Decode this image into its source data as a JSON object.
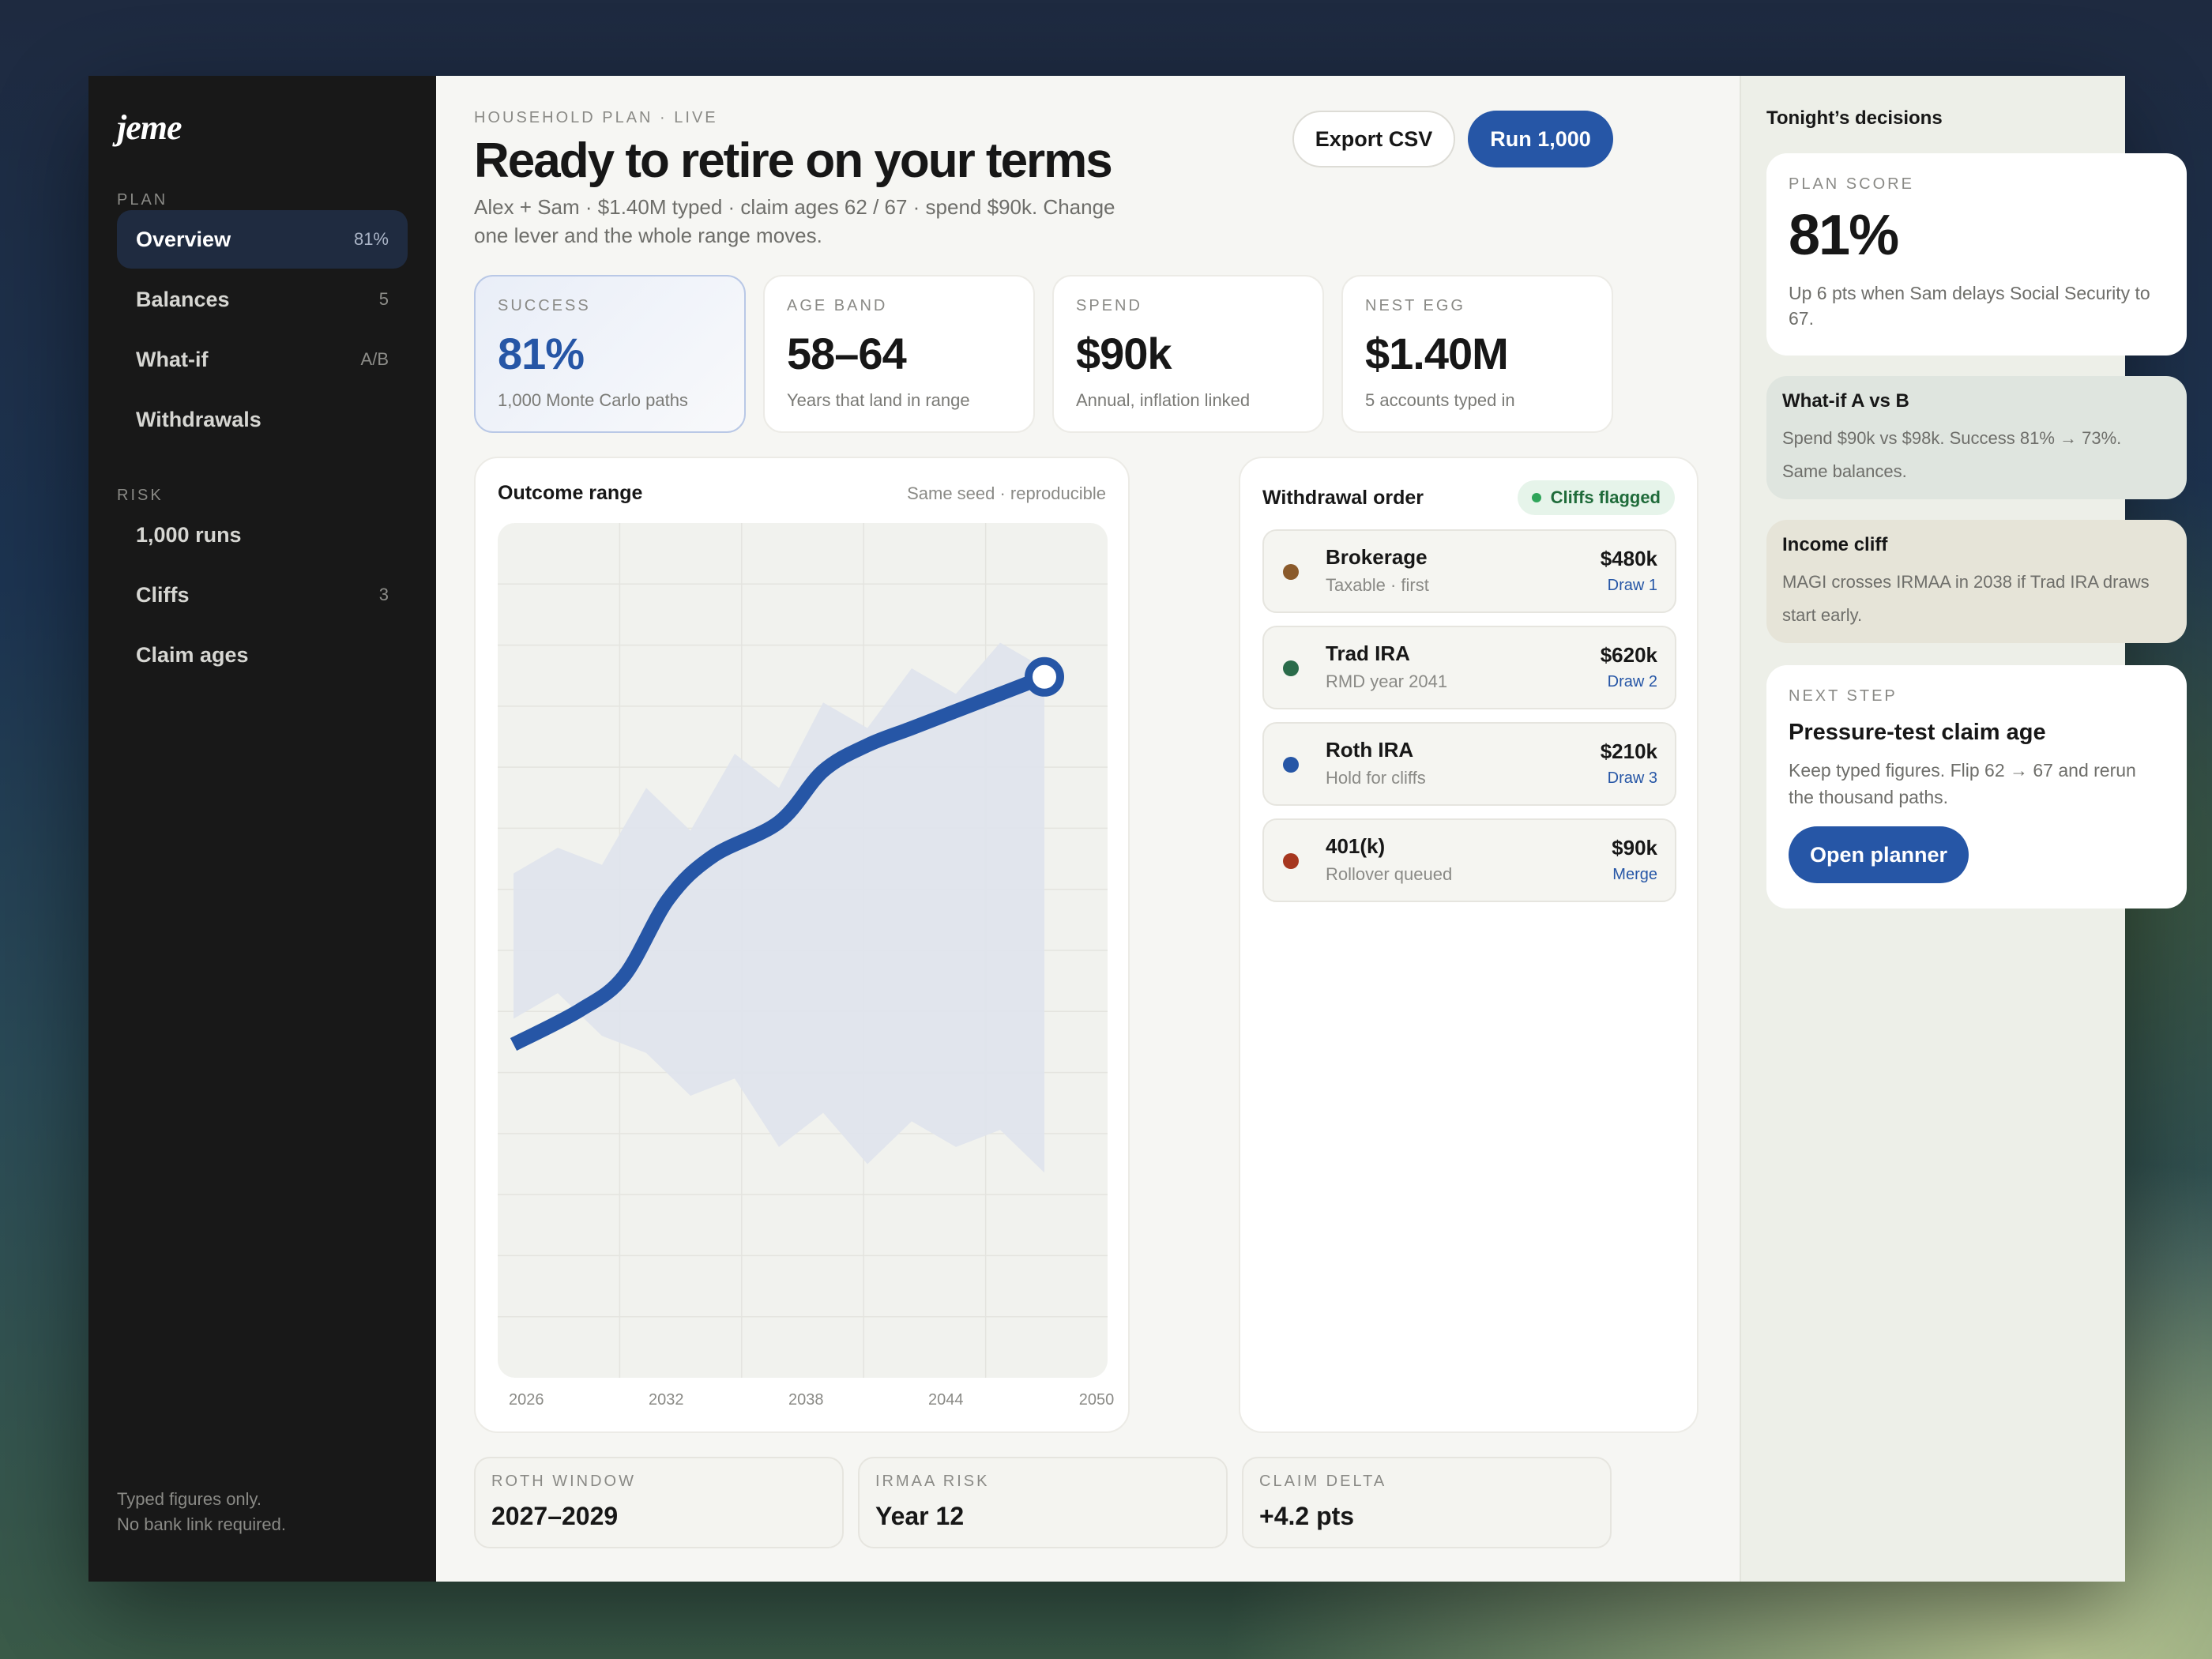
{
  "app": {
    "logo": "jeme"
  },
  "sidebar": {
    "plan_label": "PLAN",
    "plan_items": [
      {
        "label": "Overview",
        "badge": "81%"
      },
      {
        "label": "Balances",
        "badge": "5"
      },
      {
        "label": "What-if",
        "badge": "A/B"
      },
      {
        "label": "Withdrawals",
        "badge": ""
      }
    ],
    "risk_label": "RISK",
    "risk_items": [
      {
        "label": "1,000 runs",
        "badge": ""
      },
      {
        "label": "Cliffs",
        "badge": "3"
      },
      {
        "label": "Claim ages",
        "badge": ""
      }
    ],
    "footer_line1": "Typed figures only.",
    "footer_line2": "No bank link required."
  },
  "header": {
    "eyebrow": "HOUSEHOLD PLAN · LIVE",
    "title": "Ready to retire on your terms",
    "subtitle": "Alex + Sam · $1.40M typed · claim ages 62 / 67 · spend $90k. Change one lever and the whole range moves.",
    "export_label": "Export CSV",
    "run_label": "Run 1,000"
  },
  "kpis": [
    {
      "label": "SUCCESS",
      "value": "81%",
      "note": "1,000 Monte Carlo paths"
    },
    {
      "label": "AGE BAND",
      "value": "58–64",
      "note": "Years that land in range"
    },
    {
      "label": "SPEND",
      "value": "$90k",
      "note": "Annual, inflation linked"
    },
    {
      "label": "NEST EGG",
      "value": "$1.40M",
      "note": "5 accounts typed in"
    }
  ],
  "outcome": {
    "title": "Outcome range",
    "note": "Same seed · reproducible"
  },
  "chart_data": {
    "type": "area",
    "title": "Outcome range",
    "x_ticks": [
      "2026",
      "2032",
      "2038",
      "2044",
      "2050"
    ],
    "xlim": [
      2026,
      2050
    ],
    "ylim": [
      0,
      100
    ],
    "grid": true,
    "band_color": "#dfe4ec",
    "line_color": "#2656a6",
    "band_upper": [
      {
        "x": 2026,
        "y": 59
      },
      {
        "x": 2028,
        "y": 62
      },
      {
        "x": 2030,
        "y": 60
      },
      {
        "x": 2032,
        "y": 69
      },
      {
        "x": 2034,
        "y": 64
      },
      {
        "x": 2036,
        "y": 73
      },
      {
        "x": 2038,
        "y": 69
      },
      {
        "x": 2040,
        "y": 79
      },
      {
        "x": 2042,
        "y": 76
      },
      {
        "x": 2044,
        "y": 83
      },
      {
        "x": 2046,
        "y": 80
      },
      {
        "x": 2048,
        "y": 86
      },
      {
        "x": 2050,
        "y": 83
      }
    ],
    "band_lower": [
      {
        "x": 2026,
        "y": 42
      },
      {
        "x": 2028,
        "y": 45
      },
      {
        "x": 2030,
        "y": 40
      },
      {
        "x": 2032,
        "y": 38
      },
      {
        "x": 2034,
        "y": 33
      },
      {
        "x": 2036,
        "y": 35
      },
      {
        "x": 2038,
        "y": 27
      },
      {
        "x": 2040,
        "y": 31
      },
      {
        "x": 2042,
        "y": 25
      },
      {
        "x": 2044,
        "y": 30
      },
      {
        "x": 2046,
        "y": 27
      },
      {
        "x": 2048,
        "y": 29
      },
      {
        "x": 2050,
        "y": 24
      }
    ],
    "median": [
      {
        "x": 2026,
        "y": 39
      },
      {
        "x": 2029,
        "y": 43
      },
      {
        "x": 2031,
        "y": 47
      },
      {
        "x": 2033,
        "y": 56
      },
      {
        "x": 2035,
        "y": 61
      },
      {
        "x": 2038,
        "y": 65
      },
      {
        "x": 2040,
        "y": 71
      },
      {
        "x": 2042,
        "y": 74
      },
      {
        "x": 2044,
        "y": 76
      },
      {
        "x": 2046,
        "y": 78
      },
      {
        "x": 2048,
        "y": 80
      },
      {
        "x": 2050,
        "y": 82
      }
    ]
  },
  "withdrawal": {
    "title": "Withdrawal order",
    "pill": "Cliffs flagged",
    "rows": [
      {
        "name": "Brokerage",
        "sub": "Taxable · first",
        "amount": "$480k",
        "draw": "Draw 1",
        "color": "#8a5a2b"
      },
      {
        "name": "Trad IRA",
        "sub": "RMD year 2041",
        "amount": "$620k",
        "draw": "Draw 2",
        "color": "#2a6b4a"
      },
      {
        "name": "Roth IRA",
        "sub": "Hold for cliffs",
        "amount": "$210k",
        "draw": "Draw 3",
        "color": "#2656a6"
      },
      {
        "name": "401(k)",
        "sub": "Rollover queued",
        "amount": "$90k",
        "draw": "Merge",
        "color": "#a6371f"
      }
    ]
  },
  "stats": [
    {
      "label": "ROTH WINDOW",
      "value": "2027–2029"
    },
    {
      "label": "IRMAA RISK",
      "value": "Year 12"
    },
    {
      "label": "CLAIM DELTA",
      "value": "+4.2 pts"
    }
  ],
  "right": {
    "title": "Tonight’s decisions",
    "score": {
      "label": "PLAN SCORE",
      "value": "81%",
      "note": "Up 6 pts when Sam delays Social Security to 67."
    },
    "whatif": {
      "title": "What-if A vs B",
      "text": "Spend $90k vs $98k. Success 81% → 73%. Same balances."
    },
    "cliff": {
      "title": "Income cliff",
      "text": "MAGI crosses IRMAA in 2038 if Trad IRA draws start early."
    },
    "next": {
      "label": "NEXT STEP",
      "title": "Pressure-test claim age",
      "text": "Keep typed figures. Flip 62 → 67 and rerun the thousand paths.",
      "button": "Open planner"
    }
  }
}
